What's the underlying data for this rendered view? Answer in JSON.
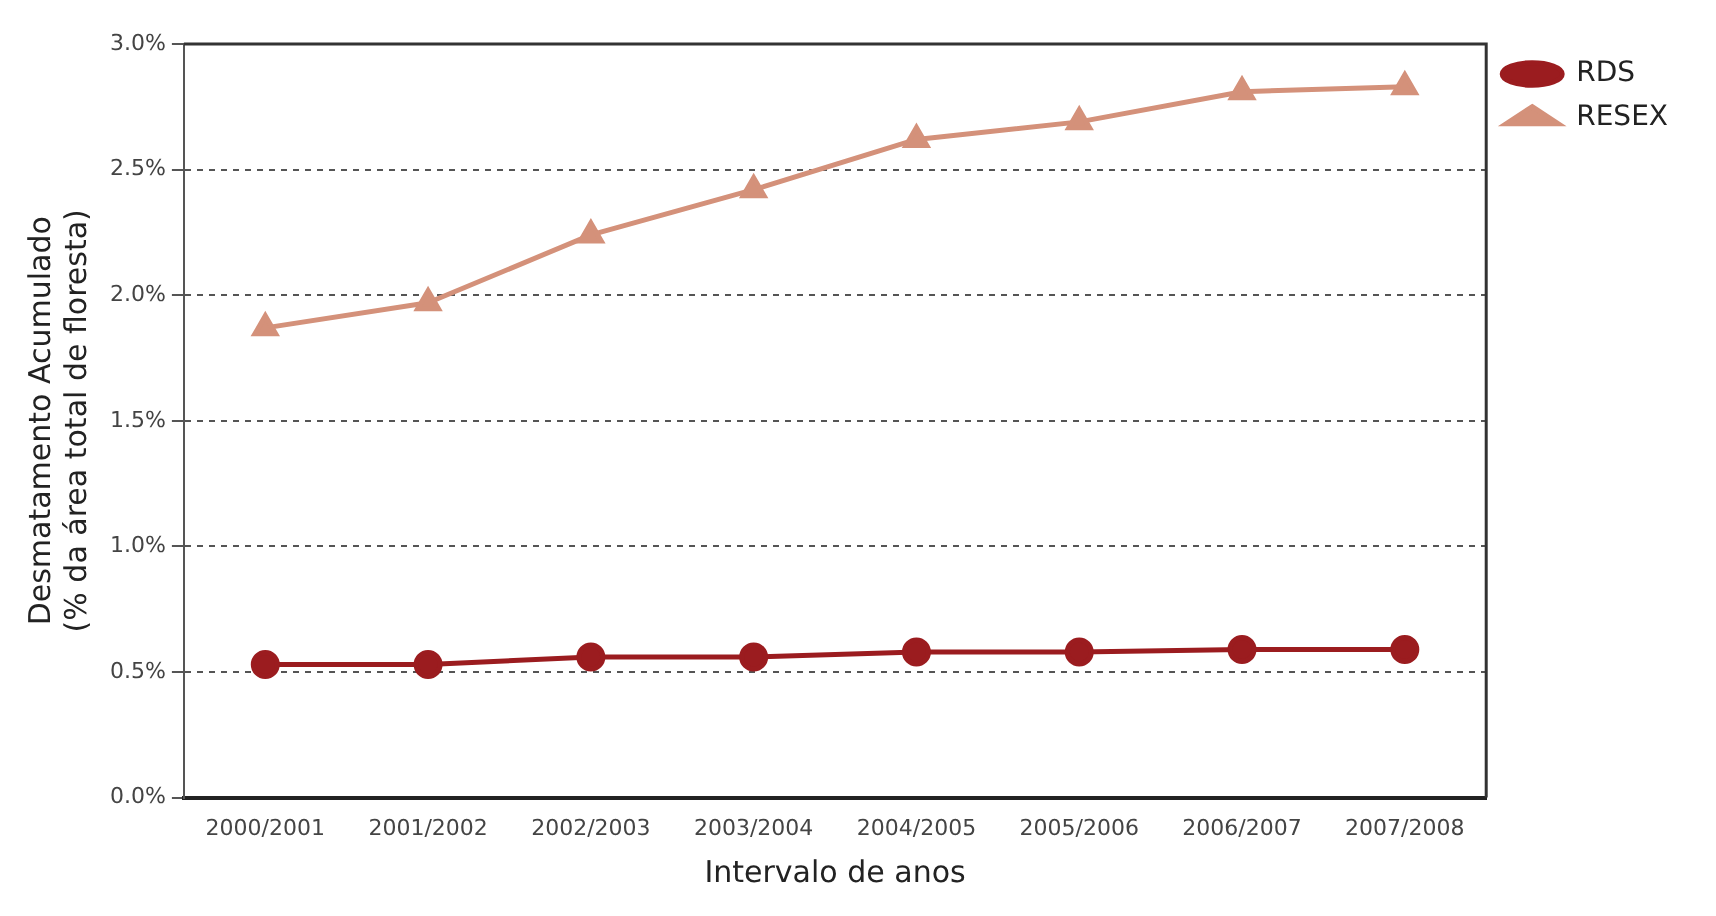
{
  "chart_data": {
    "type": "line",
    "xlabel": "Intervalo de anos",
    "ylabel": "Desmatamento Acumulado\n(% da área total de floresta)",
    "categories": [
      "2000/2001",
      "2001/2002",
      "2002/2003",
      "2003/2004",
      "2004/2005",
      "2005/2006",
      "2006/2007",
      "2007/2008"
    ],
    "series": [
      {
        "name": "RDS",
        "color": "#9b1c1f",
        "marker": "circle",
        "values": [
          0.53,
          0.53,
          0.56,
          0.56,
          0.58,
          0.58,
          0.59,
          0.59
        ]
      },
      {
        "name": "RESEX",
        "color": "#d4917a",
        "marker": "triangle",
        "values": [
          1.87,
          1.97,
          2.24,
          2.42,
          2.62,
          2.69,
          2.81,
          2.83
        ]
      }
    ],
    "ylim": [
      0,
      3
    ],
    "yticks": [
      {
        "value": 0,
        "label": "0.0%"
      },
      {
        "value": 0.5,
        "label": "0.5%"
      },
      {
        "value": 1,
        "label": "1.0%"
      },
      {
        "value": 1.5,
        "label": "1.5%"
      },
      {
        "value": 2,
        "label": "2.0%"
      },
      {
        "value": 2.5,
        "label": "2.5%"
      },
      {
        "value": 3,
        "label": "3.0%"
      }
    ],
    "grid": "y",
    "legend": "right",
    "line_style": "solid"
  }
}
